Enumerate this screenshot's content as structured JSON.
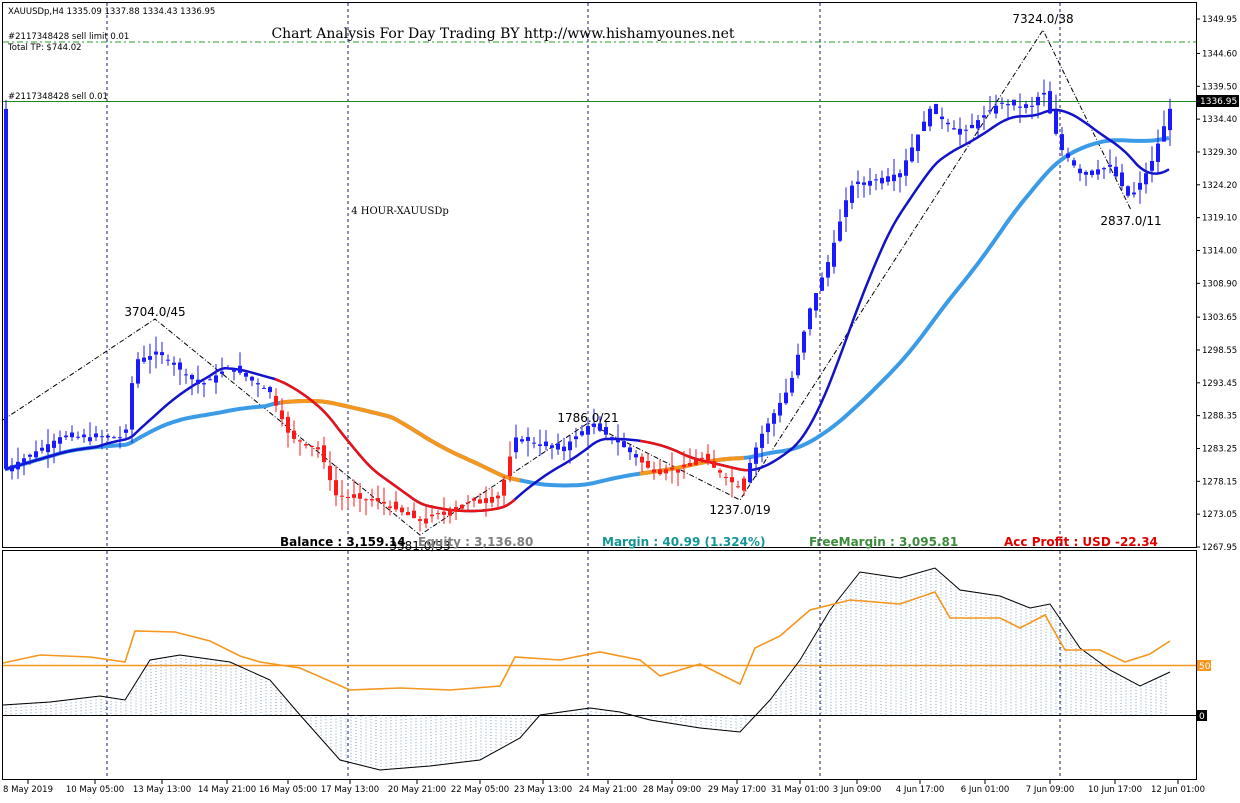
{
  "header": {
    "symbol_line": "XAUUSDp,H4  1335.09 1337.88 1334.43 1336.95",
    "order_line": "#2117348428 sell limit 0.01",
    "total_tp": "Total TP: $744.02",
    "sell_label": "#2117348428 sell 0.01",
    "title": "Chart Analysis For Day Trading BY http://www.hishamyounes.net",
    "subtitle": "4 HOUR-XAUUSDp"
  },
  "account": {
    "balance_label": "Balance : 3,159.14",
    "equity_label": "Equity : 3,136.80",
    "margin_label": "Margin : 40.99 (1.324%)",
    "free_margin_label": "FreeMargin : 3,095.81",
    "profit_label": "Acc Profit : USD -22.34"
  },
  "zigzag_labels": [
    "3704.0/45",
    "3381.0/33",
    "1786.0/21",
    "1237.0/19",
    "7324.0/38",
    "2837.0/11"
  ],
  "price_axis": {
    "ticks": [
      "1349.95",
      "1344.60",
      "1339.50",
      "1334.40",
      "1329.30",
      "1324.20",
      "1319.10",
      "1314.00",
      "1308.90",
      "1303.65",
      "1298.55",
      "1293.45",
      "1288.35",
      "1283.25",
      "1278.15",
      "1273.05",
      "1267.95"
    ],
    "current_price": "1336.95"
  },
  "indicator_axis": {
    "level_label": "50",
    "zero_label": "0"
  },
  "time_axis": [
    "8 May 2019",
    "10 May 05:00",
    "13 May 13:00",
    "14 May 21:00",
    "16 May 05:00",
    "17 May 13:00",
    "20 May 21:00",
    "22 May 05:00",
    "23 May 13:00",
    "24 May 21:00",
    "28 May 09:00",
    "29 May 17:00",
    "31 May 01:00",
    "3 Jun 09:00",
    "4 Jun 17:00",
    "6 Jun 01:00",
    "7 Jun 09:00",
    "10 Jun 17:00",
    "12 Jun 01:00"
  ],
  "colors": {
    "bull_candle": "#1a1aff",
    "bear_candle": "#ff1a1a",
    "ma_fast": "#1212c8",
    "ma_slow": "#3c9be6",
    "ma_slow_orange": "#f5961e",
    "ma_fast_red": "#e61414",
    "profit_red": "#e00000",
    "margin_teal": "#149696",
    "free_margin_green": "#3c8c3c",
    "level_line": "#f5961e"
  },
  "chart_data": {
    "type": "line",
    "title": "Chart Analysis For Day Trading BY http://www.hishamyounes.net",
    "ylim": [
      1267.95,
      1349.95
    ],
    "x": [
      "8 May 2019",
      "10 May 05:00",
      "13 May 13:00",
      "14 May 21:00",
      "16 May 05:00",
      "17 May 13:00",
      "20 May 21:00",
      "22 May 05:00",
      "23 May 13:00",
      "24 May 21:00",
      "28 May 09:00",
      "29 May 17:00",
      "31 May 01:00",
      "3 Jun 09:00",
      "4 Jun 17:00",
      "6 Jun 01:00",
      "7 Jun 09:00",
      "10 Jun 17:00",
      "12 Jun 01:00"
    ],
    "series": [
      {
        "values": [
          1281,
          1285,
          1297,
          1295,
          1287,
          1276,
          1272,
          1277,
          1285,
          1284,
          1278,
          1277,
          1305,
          1325,
          1333,
          1337,
          1340,
          1326,
          1336
        ]
      }
    ],
    "current_price": 1336.95
  }
}
